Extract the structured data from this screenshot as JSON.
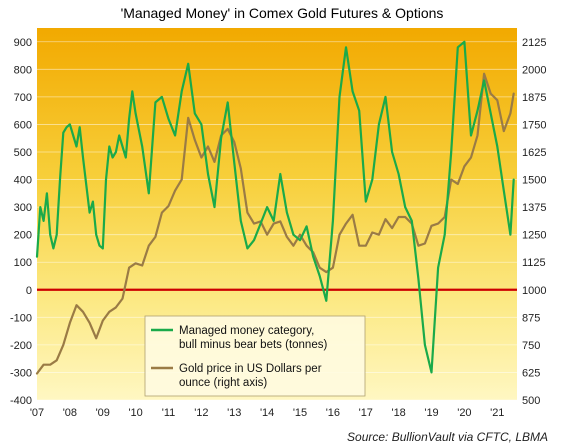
{
  "chart_data": {
    "type": "line",
    "title": "'Managed Money' in Comex Gold Futures & Options",
    "source": "Source: BullionVault via CFTC, LBMA",
    "x_ticks": [
      "'07",
      "'08",
      "'09",
      "'10",
      "'11",
      "'12",
      "'13",
      "'14",
      "'15",
      "'16",
      "'17",
      "'18",
      "'19",
      "'20",
      "'21"
    ],
    "xlim": [
      2007.0,
      2021.6
    ],
    "left_axis": {
      "ylim": [
        -400,
        950
      ],
      "ticks": [
        -400,
        -300,
        -200,
        -100,
        0,
        100,
        200,
        300,
        400,
        500,
        600,
        700,
        800,
        900
      ]
    },
    "right_axis": {
      "ylim": [
        500,
        2187.5
      ],
      "ticks": [
        500,
        625,
        750,
        875,
        1000,
        1125,
        1250,
        1375,
        1500,
        1625,
        1750,
        1875,
        2000,
        2125
      ]
    },
    "zero_line": 0,
    "legend": {
      "position": "lower-left",
      "entries": [
        {
          "label_lines": [
            "Managed money category,",
            "bull minus bear bets (tonnes)"
          ],
          "color": "#1aaa4a"
        },
        {
          "label_lines": [
            "Gold price in US Dollars per",
            "ounce (right axis)"
          ],
          "color": "#9a7b45"
        }
      ]
    },
    "series": [
      {
        "axis": "left",
        "color": "#1aaa4a",
        "x": [
          2007.0,
          2007.1,
          2007.2,
          2007.3,
          2007.4,
          2007.5,
          2007.6,
          2007.7,
          2007.8,
          2007.9,
          2008.0,
          2008.1,
          2008.2,
          2008.3,
          2008.4,
          2008.5,
          2008.6,
          2008.7,
          2008.8,
          2008.9,
          2009.0,
          2009.1,
          2009.2,
          2009.3,
          2009.4,
          2009.5,
          2009.6,
          2009.7,
          2009.8,
          2009.9,
          2010.0,
          2010.2,
          2010.4,
          2010.6,
          2010.8,
          2011.0,
          2011.2,
          2011.4,
          2011.6,
          2011.8,
          2012.0,
          2012.2,
          2012.4,
          2012.6,
          2012.8,
          2013.0,
          2013.2,
          2013.4,
          2013.6,
          2013.8,
          2014.0,
          2014.2,
          2014.4,
          2014.6,
          2014.8,
          2015.0,
          2015.2,
          2015.4,
          2015.6,
          2015.8,
          2016.0,
          2016.2,
          2016.4,
          2016.6,
          2016.8,
          2017.0,
          2017.2,
          2017.4,
          2017.6,
          2017.8,
          2018.0,
          2018.2,
          2018.4,
          2018.6,
          2018.8,
          2019.0,
          2019.2,
          2019.4,
          2019.6,
          2019.8,
          2020.0,
          2020.2,
          2020.4,
          2020.6,
          2020.8,
          2021.0,
          2021.2,
          2021.4,
          2021.5
        ],
        "values": [
          120,
          300,
          250,
          350,
          200,
          150,
          200,
          400,
          570,
          590,
          600,
          560,
          520,
          590,
          480,
          380,
          280,
          320,
          200,
          160,
          150,
          400,
          520,
          480,
          500,
          560,
          520,
          480,
          620,
          720,
          640,
          520,
          350,
          680,
          700,
          620,
          560,
          720,
          820,
          640,
          600,
          420,
          300,
          550,
          680,
          460,
          250,
          150,
          180,
          240,
          300,
          250,
          420,
          280,
          200,
          180,
          230,
          120,
          50,
          -40,
          250,
          700,
          880,
          720,
          650,
          320,
          400,
          600,
          700,
          500,
          420,
          300,
          250,
          40,
          -200,
          -300,
          80,
          200,
          500,
          880,
          900,
          560,
          650,
          760,
          640,
          520,
          360,
          200,
          400
        ]
      },
      {
        "axis": "right",
        "color": "#9a7b45",
        "x": [
          2007.0,
          2007.2,
          2007.4,
          2007.6,
          2007.8,
          2008.0,
          2008.2,
          2008.4,
          2008.6,
          2008.8,
          2009.0,
          2009.2,
          2009.4,
          2009.6,
          2009.8,
          2010.0,
          2010.2,
          2010.4,
          2010.6,
          2010.8,
          2011.0,
          2011.2,
          2011.4,
          2011.6,
          2011.8,
          2012.0,
          2012.2,
          2012.4,
          2012.6,
          2012.8,
          2013.0,
          2013.2,
          2013.4,
          2013.6,
          2013.8,
          2014.0,
          2014.2,
          2014.4,
          2014.6,
          2014.8,
          2015.0,
          2015.2,
          2015.4,
          2015.6,
          2015.8,
          2016.0,
          2016.2,
          2016.4,
          2016.6,
          2016.8,
          2017.0,
          2017.2,
          2017.4,
          2017.6,
          2017.8,
          2018.0,
          2018.2,
          2018.4,
          2018.6,
          2018.8,
          2019.0,
          2019.2,
          2019.4,
          2019.6,
          2019.8,
          2020.0,
          2020.2,
          2020.4,
          2020.6,
          2020.8,
          2021.0,
          2021.2,
          2021.4,
          2021.5
        ],
        "values": [
          620,
          660,
          660,
          680,
          750,
          850,
          930,
          900,
          850,
          780,
          860,
          900,
          920,
          960,
          1100,
          1120,
          1110,
          1200,
          1240,
          1350,
          1380,
          1450,
          1500,
          1780,
          1680,
          1600,
          1650,
          1580,
          1700,
          1730,
          1670,
          1550,
          1350,
          1300,
          1310,
          1250,
          1300,
          1310,
          1240,
          1200,
          1250,
          1200,
          1170,
          1100,
          1080,
          1100,
          1250,
          1300,
          1340,
          1200,
          1200,
          1260,
          1250,
          1320,
          1280,
          1330,
          1330,
          1300,
          1200,
          1210,
          1290,
          1300,
          1330,
          1500,
          1480,
          1560,
          1600,
          1700,
          1980,
          1890,
          1860,
          1720,
          1800,
          1890
        ]
      }
    ]
  }
}
